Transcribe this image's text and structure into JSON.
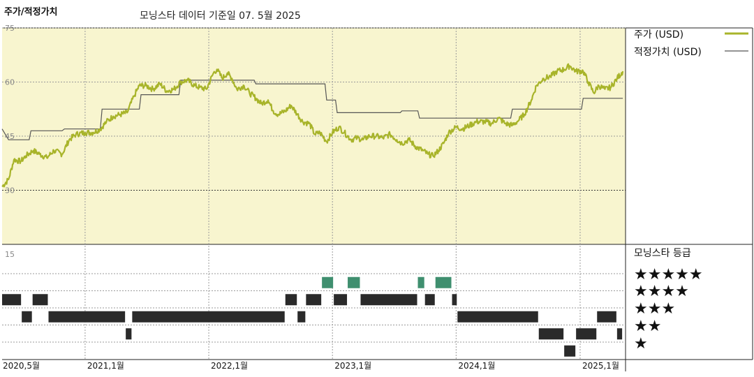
{
  "header": {
    "left_label": "주가/적정가치",
    "center_label": "모닝스타 데이터 기준일 07. 5월 2025"
  },
  "colors": {
    "price": "#a8b42a",
    "fair_value": "#555555",
    "top_background": "#f8f5cf",
    "grid": "#9a9a9a",
    "rating_dark": "#2a2a2a",
    "rating_green": "#3f8f6f"
  },
  "legend": {
    "price": "주가 (USD)",
    "fair_value": "적정가치 (USD)",
    "rating_title": "모닝스타 등급",
    "star_rows": [
      "★★★★★",
      "★★★★",
      "★★★",
      "★★",
      "★"
    ]
  },
  "chart_data": {
    "type": "line",
    "y_ticks": [
      "75",
      "60",
      "45",
      "30"
    ],
    "y_range": [
      15,
      75
    ],
    "rating_axis_label": "15",
    "x_labels": [
      "2020,5월",
      "2021,1월",
      "2022,1월",
      "2023,1월",
      "2024,1월",
      "2025,1월"
    ],
    "x_range": [
      "2020-05-01",
      "2025-05-07"
    ],
    "series": [
      {
        "name": "주가 (USD)",
        "points": [
          [
            "2020-05-01",
            31
          ],
          [
            "2020-05-20",
            33
          ],
          [
            "2020-06-05",
            38.5
          ],
          [
            "2020-06-25",
            38
          ],
          [
            "2020-07-10",
            39.5
          ],
          [
            "2020-08-01",
            41
          ],
          [
            "2020-08-20",
            40
          ],
          [
            "2020-09-10",
            39
          ],
          [
            "2020-10-01",
            41
          ],
          [
            "2020-10-25",
            40
          ],
          [
            "2020-11-15",
            44
          ],
          [
            "2020-12-05",
            45.5
          ],
          [
            "2021-01-01",
            46
          ],
          [
            "2021-01-25",
            46
          ],
          [
            "2021-02-15",
            47
          ],
          [
            "2021-03-05",
            49
          ],
          [
            "2021-03-25",
            50.5
          ],
          [
            "2021-04-15",
            51
          ],
          [
            "2021-05-05",
            51.5
          ],
          [
            "2021-05-25",
            56
          ],
          [
            "2021-06-10",
            59
          ],
          [
            "2021-06-30",
            59
          ],
          [
            "2021-07-20",
            58
          ],
          [
            "2021-08-10",
            59.5
          ],
          [
            "2021-08-30",
            57.5
          ],
          [
            "2021-09-20",
            58
          ],
          [
            "2021-10-10",
            60
          ],
          [
            "2021-10-30",
            60.5
          ],
          [
            "2021-11-20",
            59
          ],
          [
            "2021-12-05",
            58.5
          ],
          [
            "2021-12-25",
            58
          ],
          [
            "2022-01-15",
            62.5
          ],
          [
            "2022-01-25",
            63.5
          ],
          [
            "2022-02-10",
            61
          ],
          [
            "2022-02-25",
            62.5
          ],
          [
            "2022-03-10",
            61
          ],
          [
            "2022-03-25",
            58
          ],
          [
            "2022-04-15",
            59
          ],
          [
            "2022-05-01",
            57
          ],
          [
            "2022-05-20",
            55.5
          ],
          [
            "2022-06-05",
            54
          ],
          [
            "2022-06-25",
            55
          ],
          [
            "2022-07-10",
            52
          ],
          [
            "2022-07-25",
            51
          ],
          [
            "2022-08-15",
            52
          ],
          [
            "2022-09-01",
            53.5
          ],
          [
            "2022-09-20",
            51
          ],
          [
            "2022-10-05",
            49
          ],
          [
            "2022-10-25",
            48.5
          ],
          [
            "2022-11-10",
            45.5
          ],
          [
            "2022-11-25",
            46
          ],
          [
            "2022-12-15",
            43.5
          ],
          [
            "2023-01-01",
            46
          ],
          [
            "2023-01-20",
            47.5
          ],
          [
            "2023-02-05",
            46
          ],
          [
            "2023-02-25",
            44
          ],
          [
            "2023-03-15",
            44.5
          ],
          [
            "2023-04-01",
            44
          ],
          [
            "2023-04-20",
            45
          ],
          [
            "2023-05-10",
            45
          ],
          [
            "2023-05-30",
            44.5
          ],
          [
            "2023-06-20",
            45.5
          ],
          [
            "2023-07-10",
            44
          ],
          [
            "2023-07-25",
            43
          ],
          [
            "2023-08-15",
            44
          ],
          [
            "2023-09-05",
            42
          ],
          [
            "2023-09-25",
            41
          ],
          [
            "2023-10-10",
            40
          ],
          [
            "2023-10-25",
            39.5
          ],
          [
            "2023-11-10",
            41
          ],
          [
            "2023-11-25",
            43
          ],
          [
            "2023-12-10",
            46
          ],
          [
            "2024-01-01",
            47.5
          ],
          [
            "2024-01-20",
            47
          ],
          [
            "2024-02-10",
            48
          ],
          [
            "2024-03-01",
            49
          ],
          [
            "2024-03-25",
            49
          ],
          [
            "2024-04-15",
            48.5
          ],
          [
            "2024-05-05",
            50
          ],
          [
            "2024-05-25",
            48.5
          ],
          [
            "2024-06-15",
            48
          ],
          [
            "2024-07-05",
            49.5
          ],
          [
            "2024-07-20",
            51
          ],
          [
            "2024-08-10",
            55
          ],
          [
            "2024-08-25",
            59
          ],
          [
            "2024-09-15",
            61
          ],
          [
            "2024-10-05",
            61.5
          ],
          [
            "2024-10-25",
            63
          ],
          [
            "2024-11-15",
            63.5
          ],
          [
            "2024-12-01",
            64.5
          ],
          [
            "2024-12-20",
            63
          ],
          [
            "2025-01-10",
            63
          ],
          [
            "2025-01-25",
            60
          ],
          [
            "2025-02-10",
            57
          ],
          [
            "2025-02-25",
            59
          ],
          [
            "2025-03-15",
            58
          ],
          [
            "2025-04-01",
            58.5
          ],
          [
            "2025-04-20",
            61
          ],
          [
            "2025-05-07",
            63
          ]
        ]
      },
      {
        "name": "적정가치 (USD)",
        "points": [
          [
            "2020-05-01",
            47
          ],
          [
            "2020-05-20",
            44
          ],
          [
            "2020-07-20",
            44
          ],
          [
            "2020-07-25",
            46.5
          ],
          [
            "2020-10-25",
            46.5
          ],
          [
            "2020-11-01",
            47
          ],
          [
            "2021-02-15",
            47
          ],
          [
            "2021-02-20",
            52.5
          ],
          [
            "2021-06-10",
            52.5
          ],
          [
            "2021-06-15",
            56.5
          ],
          [
            "2021-10-05",
            56.5
          ],
          [
            "2021-10-10",
            60.5
          ],
          [
            "2022-05-15",
            60.5
          ],
          [
            "2022-05-20",
            59.5
          ],
          [
            "2022-12-10",
            59.5
          ],
          [
            "2022-12-15",
            55
          ],
          [
            "2023-01-10",
            55
          ],
          [
            "2023-01-15",
            51.5
          ],
          [
            "2023-07-20",
            51.5
          ],
          [
            "2023-07-25",
            52
          ],
          [
            "2023-09-10",
            52
          ],
          [
            "2023-09-15",
            50
          ],
          [
            "2024-06-10",
            50
          ],
          [
            "2024-06-15",
            52.5
          ],
          [
            "2025-01-05",
            52.5
          ],
          [
            "2025-01-10",
            55.5
          ],
          [
            "2025-05-07",
            55.5
          ]
        ]
      }
    ],
    "ratings": [
      [
        "2020-05-01",
        "2020-06-28",
        4
      ],
      [
        "2020-06-28",
        "2020-07-30",
        3
      ],
      [
        "2020-07-30",
        "2020-09-15",
        4
      ],
      [
        "2020-09-15",
        "2021-05-01",
        3
      ],
      [
        "2021-05-01",
        "2021-05-20",
        2
      ],
      [
        "2021-05-20",
        "2022-08-15",
        3
      ],
      [
        "2022-08-15",
        "2022-09-20",
        4
      ],
      [
        "2022-09-20",
        "2022-10-15",
        3
      ],
      [
        "2022-10-15",
        "2022-12-01",
        4
      ],
      [
        "2022-12-01",
        "2023-01-05",
        5
      ],
      [
        "2023-01-05",
        "2023-02-15",
        4
      ],
      [
        "2023-02-15",
        "2023-03-25",
        5
      ],
      [
        "2023-03-25",
        "2023-09-10",
        4
      ],
      [
        "2023-09-10",
        "2023-10-01",
        5
      ],
      [
        "2023-10-01",
        "2023-11-01",
        4
      ],
      [
        "2023-11-01",
        "2023-12-20",
        5
      ],
      [
        "2023-12-20",
        "2024-01-05",
        4
      ],
      [
        "2024-01-05",
        "2024-09-01",
        3
      ],
      [
        "2024-09-01",
        "2024-11-15",
        2
      ],
      [
        "2024-11-15",
        "2024-12-20",
        1
      ],
      [
        "2024-12-20",
        "2025-02-20",
        2
      ],
      [
        "2025-02-20",
        "2025-04-20",
        3
      ],
      [
        "2025-04-20",
        "2025-05-07",
        2
      ]
    ]
  }
}
